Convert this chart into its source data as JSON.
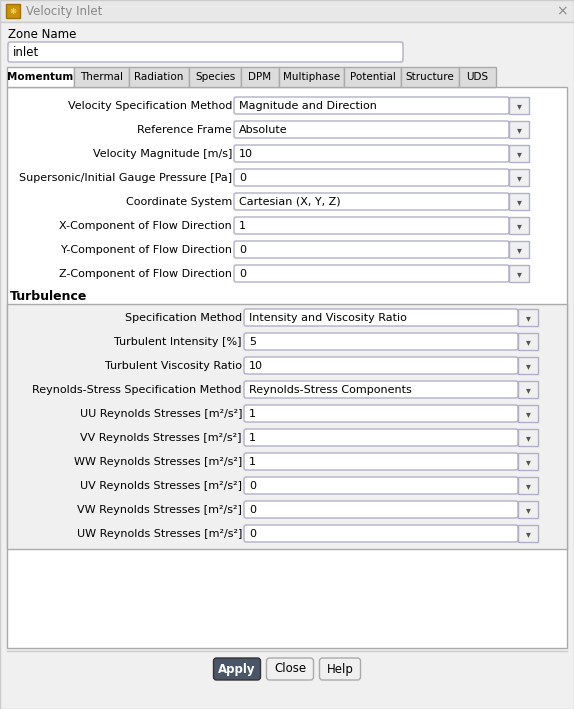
{
  "title": "Velocity Inlet",
  "zone_name_label": "Zone Name",
  "zone_name_value": "inlet",
  "tabs": [
    "Momentum",
    "Thermal",
    "Radiation",
    "Species",
    "DPM",
    "Multiphase",
    "Potential",
    "Structure",
    "UDS"
  ],
  "active_tab": "Momentum",
  "momentum_rows": [
    {
      "label": "Velocity Specification Method",
      "value": "Magnitude and Direction"
    },
    {
      "label": "Reference Frame",
      "value": "Absolute"
    },
    {
      "label": "Velocity Magnitude [m/s]",
      "value": "10"
    },
    {
      "label": "Supersonic/Initial Gauge Pressure [Pa]",
      "value": "0"
    },
    {
      "label": "Coordinate System",
      "value": "Cartesian (X, Y, Z)"
    },
    {
      "label": "X-Component of Flow Direction",
      "value": "1"
    },
    {
      "label": "Y-Component of Flow Direction",
      "value": "0"
    },
    {
      "label": "Z-Component of Flow Direction",
      "value": "0"
    }
  ],
  "turbulence_section": "Turbulence",
  "turbulence_rows": [
    {
      "label": "Specification Method",
      "value": "Intensity and Viscosity Ratio"
    },
    {
      "label": "Turbulent Intensity [%]",
      "value": "5"
    },
    {
      "label": "Turbulent Viscosity Ratio",
      "value": "10"
    },
    {
      "label": "Reynolds-Stress Specification Method",
      "value": "Reynolds-Stress Components"
    },
    {
      "label": "UU Reynolds Stresses [m²/s²]",
      "value": "1"
    },
    {
      "label": "VV Reynolds Stresses [m²/s²]",
      "value": "1"
    },
    {
      "label": "WW Reynolds Stresses [m²/s²]",
      "value": "1"
    },
    {
      "label": "UV Reynolds Stresses [m²/s²]",
      "value": "0"
    },
    {
      "label": "VW Reynolds Stresses [m²/s²]",
      "value": "0"
    },
    {
      "label": "UW Reynolds Stresses [m²/s²]",
      "value": "0"
    }
  ],
  "buttons": [
    "Apply",
    "Close",
    "Help"
  ],
  "bg_color": "#f0f0f0",
  "field_bg": "#ffffff",
  "field_border": "#b0b0c8",
  "title_bar_color": "#e8e8e8",
  "tab_active_color": "#ffffff",
  "tab_inactive_color": "#dcdcdc",
  "apply_btn_color": "#4a5568",
  "apply_btn_text": "#ffffff",
  "btn_color": "#f0f0f0",
  "btn_border": "#aaaaaa",
  "title_text_color": "#888888",
  "border_color": "#aaaaaa",
  "text_color": "#000000"
}
